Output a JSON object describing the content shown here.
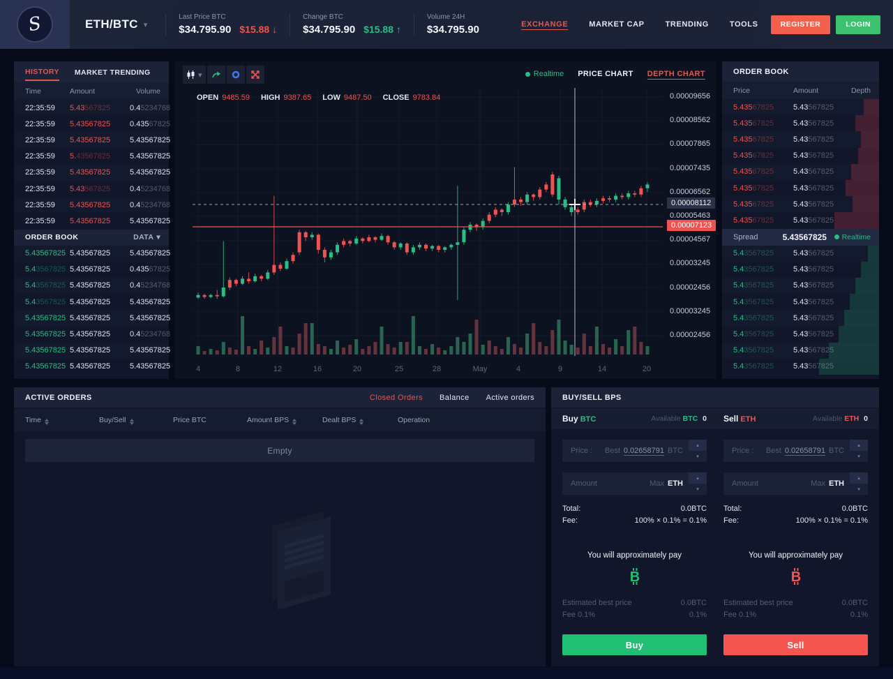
{
  "header": {
    "pair": "ETH/BTC",
    "stats": [
      {
        "label": "Last Price BTC",
        "value": "$34.795.90",
        "delta": "$15.88",
        "arrow": "↓",
        "dir": "down"
      },
      {
        "label": "Change BTC",
        "value": "$34.795.90",
        "delta": "$15.88",
        "arrow": "↑",
        "dir": "up"
      },
      {
        "label": "Volume 24H",
        "value": "$34.795.90",
        "delta": "",
        "arrow": "",
        "dir": "none"
      }
    ],
    "nav": [
      {
        "label": "EXCHANGE",
        "active": true
      },
      {
        "label": "MARKET CAP",
        "active": false
      },
      {
        "label": "TRENDING",
        "active": false
      },
      {
        "label": "TOOLS",
        "active": false
      }
    ],
    "register_label": "REGISTER",
    "login_label": "LOGIN",
    "colors": {
      "accent_red": "#ef5350",
      "accent_green": "#2abd84",
      "register_bg": "#f4604e",
      "login_bg": "#3cc16e"
    }
  },
  "left_panel": {
    "tabs": [
      {
        "label": "HISTORY",
        "active": true
      },
      {
        "label": "MARKET TRENDING",
        "active": false
      }
    ],
    "history_headers": [
      "Time",
      "Amount",
      "Volume"
    ],
    "history_rows": [
      {
        "time": "22:35:59",
        "amount": {
          "b": "5.43",
          "d": "567825"
        },
        "volume": {
          "b": "0.4",
          "d": "5234768"
        }
      },
      {
        "time": "22:35:59",
        "amount": {
          "b": "5.43567825",
          "d": ""
        },
        "volume": {
          "b": "0.435",
          "d": "67825"
        }
      },
      {
        "time": "22:35:59",
        "amount": {
          "b": "5.43567825",
          "d": ""
        },
        "volume": {
          "b": "5.43567825",
          "d": ""
        }
      },
      {
        "time": "22:35:59",
        "amount": {
          "b": "5.",
          "d": "43567825"
        },
        "volume": {
          "b": "5.43567825",
          "d": ""
        }
      },
      {
        "time": "22:35:59",
        "amount": {
          "b": "5.43567825",
          "d": ""
        },
        "volume": {
          "b": "5.43567825",
          "d": ""
        }
      },
      {
        "time": "22:35:59",
        "amount": {
          "b": "5.43",
          "d": "567825"
        },
        "volume": {
          "b": "0.4",
          "d": "5234768"
        }
      },
      {
        "time": "22:35:59",
        "amount": {
          "b": "5.43567825",
          "d": ""
        },
        "volume": {
          "b": "0.4",
          "d": "5234768"
        }
      },
      {
        "time": "22:35:59",
        "amount": {
          "b": "5.43567825",
          "d": ""
        },
        "volume": {
          "b": "5.43567825",
          "d": ""
        }
      }
    ],
    "orderbook_header": {
      "title": "ORDER BOOK",
      "dropdown": "DATA"
    },
    "orderbook_rows": [
      {
        "price": {
          "b": "5.43567825",
          "d": ""
        },
        "amount": {
          "b": "5.43567825",
          "d": ""
        },
        "volume": {
          "b": "5.43567825",
          "d": ""
        }
      },
      {
        "price": {
          "b": "5.4",
          "d": "3567825"
        },
        "amount": {
          "b": "5.43567825",
          "d": ""
        },
        "volume": {
          "b": "0.435",
          "d": "67825"
        }
      },
      {
        "price": {
          "b": "5.4",
          "d": "3567825"
        },
        "amount": {
          "b": "5.43567825",
          "d": ""
        },
        "volume": {
          "b": "0.4",
          "d": "5234768"
        }
      },
      {
        "price": {
          "b": "5.4",
          "d": "3567825"
        },
        "amount": {
          "b": "5.43567825",
          "d": ""
        },
        "volume": {
          "b": "5.43567825",
          "d": ""
        }
      },
      {
        "price": {
          "b": "5.43567825",
          "d": ""
        },
        "amount": {
          "b": "5.43567825",
          "d": ""
        },
        "volume": {
          "b": "5.43567825",
          "d": ""
        }
      },
      {
        "price": {
          "b": "5.43567825",
          "d": ""
        },
        "amount": {
          "b": "5.43567825",
          "d": ""
        },
        "volume": {
          "b": "0.4",
          "d": "5234768"
        }
      },
      {
        "price": {
          "b": "5.43567825",
          "d": ""
        },
        "amount": {
          "b": "5.43567825",
          "d": ""
        },
        "volume": {
          "b": "5.43567825",
          "d": ""
        }
      },
      {
        "price": {
          "b": "5.43567825",
          "d": ""
        },
        "amount": {
          "b": "5.43567825",
          "d": ""
        },
        "volume": {
          "b": "5.43567825",
          "d": ""
        }
      }
    ]
  },
  "chart_panel": {
    "realtime_label": "Realtime",
    "tabs": [
      {
        "label": "PRICE CHART",
        "active": false
      },
      {
        "label": "DEPTH CHART",
        "active": true
      }
    ],
    "toolbar_icons": [
      "candlestick-icon",
      "chevron-down-icon",
      "curved-arrow-icon",
      "gear-icon",
      "fullscreen-icon"
    ]
  },
  "chart_data": {
    "type": "candlestick",
    "ohlc": [
      {
        "label": "OPEN",
        "value": "9485.59"
      },
      {
        "label": "HIGH",
        "value": "9387.65"
      },
      {
        "label": "LOW",
        "value": "9487.50"
      },
      {
        "label": "CLOSE",
        "value": "9783.84"
      }
    ],
    "x_axis_labels": [
      "4",
      "8",
      "12",
      "16",
      "20",
      "25",
      "28",
      "May",
      "4",
      "9",
      "14",
      "20"
    ],
    "y_axis_ticks": [
      "0.00009656",
      "0.00008562",
      "0.00007865",
      "0.00007435",
      "0.00006562",
      "0.00005463",
      "0.00004567",
      "0.00003245",
      "0.00002456",
      "0.00003245",
      "0.00002456"
    ],
    "crosshair_price_label": "0.00008112",
    "current_price_label": "0.00007123",
    "legend_grid": true,
    "colors": {
      "up": "#2abd84",
      "down": "#ef5350",
      "vol_up": "#2c6e55",
      "vol_down": "#6e3742",
      "current_line": "#ef5350"
    },
    "candles": [
      [
        2,
        4,
        6,
        1,
        "g",
        12
      ],
      [
        4,
        2.5,
        5,
        1,
        "r",
        5
      ],
      [
        2.5,
        4,
        5,
        1.5,
        "g",
        8
      ],
      [
        4,
        3,
        8,
        1,
        "r",
        6
      ],
      [
        3,
        10,
        47,
        2,
        "g",
        18
      ],
      [
        10,
        16,
        18,
        8,
        "r",
        10
      ],
      [
        16,
        13,
        17,
        11,
        "r",
        7
      ],
      [
        13,
        17,
        19,
        12,
        "g",
        55
      ],
      [
        17,
        15,
        22,
        13,
        "r",
        12
      ],
      [
        15,
        19,
        21,
        14,
        "g",
        8
      ],
      [
        19,
        17,
        20,
        15,
        "r",
        20
      ],
      [
        17,
        22,
        24,
        16,
        "g",
        10
      ],
      [
        22,
        28,
        83,
        20,
        "r",
        25
      ],
      [
        28,
        25,
        30,
        23,
        "r",
        40
      ],
      [
        25,
        31,
        33,
        24,
        "g",
        12
      ],
      [
        31,
        36,
        38,
        29,
        "r",
        10
      ],
      [
        38,
        54,
        56,
        36,
        "r",
        30
      ],
      [
        54,
        50,
        55,
        47,
        "r",
        45
      ],
      [
        50,
        52,
        54,
        48,
        "g",
        45
      ],
      [
        52,
        40,
        53,
        37,
        "r",
        15
      ],
      [
        40,
        34,
        42,
        30,
        "r",
        12
      ],
      [
        34,
        38,
        40,
        32,
        "g",
        8
      ],
      [
        38,
        44,
        46,
        36,
        "g",
        20
      ],
      [
        44,
        47,
        49,
        42,
        "r",
        10
      ],
      [
        47,
        45,
        48,
        43,
        "r",
        14
      ],
      [
        45,
        49,
        51,
        44,
        "g",
        22
      ],
      [
        49,
        47,
        50,
        45,
        "r",
        8
      ],
      [
        47,
        50,
        52,
        46,
        "r",
        12
      ],
      [
        50,
        48,
        51,
        46,
        "r",
        18
      ],
      [
        48,
        51,
        53,
        47,
        "g",
        40
      ],
      [
        51,
        46,
        52,
        44,
        "r",
        15
      ],
      [
        46,
        42,
        47,
        40,
        "r",
        10
      ],
      [
        42,
        45,
        46,
        40,
        "g",
        18
      ],
      [
        45,
        38,
        46,
        36,
        "r",
        18
      ],
      [
        38,
        42,
        44,
        36,
        "g",
        55
      ],
      [
        42,
        44,
        46,
        40,
        "g",
        12
      ],
      [
        44,
        41,
        45,
        39,
        "r",
        8
      ],
      [
        41,
        43,
        44,
        39,
        "g",
        15
      ],
      [
        43,
        40,
        44,
        38,
        "r",
        10
      ],
      [
        40,
        42,
        43,
        38,
        "g",
        6
      ],
      [
        42,
        44,
        45,
        40,
        "g",
        12
      ],
      [
        44,
        46,
        91,
        0,
        "g",
        25
      ],
      [
        46,
        56,
        58,
        44,
        "g",
        18
      ],
      [
        56,
        60,
        62,
        54,
        "g",
        30
      ],
      [
        60,
        58,
        61,
        55,
        "r",
        50
      ],
      [
        58,
        63,
        65,
        56,
        "g",
        14
      ],
      [
        63,
        68,
        70,
        61,
        "r",
        20
      ],
      [
        68,
        72,
        74,
        66,
        "r",
        12
      ],
      [
        72,
        70,
        73,
        67,
        "r",
        8
      ],
      [
        70,
        76,
        78,
        68,
        "g",
        25
      ],
      [
        76,
        80,
        106,
        74,
        "r",
        15
      ],
      [
        80,
        78,
        82,
        75,
        "r",
        10
      ],
      [
        78,
        84,
        86,
        76,
        "g",
        30
      ],
      [
        84,
        82,
        85,
        79,
        "r",
        45
      ],
      [
        82,
        88,
        90,
        80,
        "r",
        18
      ],
      [
        88,
        92,
        94,
        86,
        "r",
        12
      ],
      [
        84,
        100,
        102,
        82,
        "r",
        35
      ],
      [
        97,
        80,
        99,
        76,
        "g",
        50
      ],
      [
        80,
        74,
        82,
        72,
        "g",
        20
      ],
      [
        74,
        70,
        76,
        67,
        "g",
        14
      ],
      [
        70,
        72,
        74,
        68,
        "r",
        10
      ],
      [
        72,
        78,
        80,
        70,
        "r",
        30
      ],
      [
        78,
        76,
        80,
        74,
        "r",
        12
      ],
      [
        76,
        79,
        81,
        74,
        "g",
        40
      ],
      [
        79,
        81,
        83,
        77,
        "r",
        15
      ],
      [
        81,
        80,
        83,
        78,
        "r",
        10
      ],
      [
        80,
        83,
        85,
        78,
        "g",
        22
      ],
      [
        83,
        82,
        85,
        80,
        "r",
        12
      ],
      [
        82,
        85,
        87,
        80,
        "g",
        35
      ],
      [
        85,
        84,
        87,
        82,
        "r",
        40
      ],
      [
        84,
        89,
        91,
        82,
        "r",
        18
      ],
      [
        89,
        92,
        94,
        86,
        "g",
        12
      ]
    ]
  },
  "right_panel": {
    "title": "ORDER BOOK",
    "headers": [
      "Price",
      "Amount",
      "Depth"
    ],
    "asks": [
      {
        "price": {
          "b": "5.435",
          "d": "67825"
        },
        "amount": {
          "b": "5.43",
          "d": "567825"
        },
        "depth": 22
      },
      {
        "price": {
          "b": "5.435",
          "d": "67825"
        },
        "amount": {
          "b": "5.43",
          "d": "567825"
        },
        "depth": 34
      },
      {
        "price": {
          "b": "5.435",
          "d": "67825"
        },
        "amount": {
          "b": "5.43",
          "d": "567825"
        },
        "depth": 26
      },
      {
        "price": {
          "b": "5.435",
          "d": "67825"
        },
        "amount": {
          "b": "5.43",
          "d": "567825"
        },
        "depth": 30
      },
      {
        "price": {
          "b": "5.435",
          "d": "67825"
        },
        "amount": {
          "b": "5.43",
          "d": "567825"
        },
        "depth": 40
      },
      {
        "price": {
          "b": "5.435",
          "d": "67825"
        },
        "amount": {
          "b": "5.43",
          "d": "567825"
        },
        "depth": 48
      },
      {
        "price": {
          "b": "5.435",
          "d": "67825"
        },
        "amount": {
          "b": "5.43",
          "d": "567825"
        },
        "depth": 38
      },
      {
        "price": {
          "b": "5.435",
          "d": "67825"
        },
        "amount": {
          "b": "5.43",
          "d": "567825"
        },
        "depth": 64
      }
    ],
    "spread": {
      "label": "Spread",
      "value": "5.43567825",
      "realtime": "Realtime"
    },
    "bids": [
      {
        "price": {
          "b": "5.4",
          "d": "3567825"
        },
        "amount": {
          "b": "5.43",
          "d": "567825"
        },
        "depth": 16
      },
      {
        "price": {
          "b": "5.4",
          "d": "3567825"
        },
        "amount": {
          "b": "5.43",
          "d": "567825"
        },
        "depth": 26
      },
      {
        "price": {
          "b": "5.4",
          "d": "3567825"
        },
        "amount": {
          "b": "5.43",
          "d": "567825"
        },
        "depth": 34
      },
      {
        "price": {
          "b": "5.4",
          "d": "3567825"
        },
        "amount": {
          "b": "5.43",
          "d": "567825"
        },
        "depth": 42
      },
      {
        "price": {
          "b": "5.4",
          "d": "3567825"
        },
        "amount": {
          "b": "5.43",
          "d": "567825"
        },
        "depth": 50
      },
      {
        "price": {
          "b": "5.4",
          "d": "3567825"
        },
        "amount": {
          "b": "5.43",
          "d": "567825"
        },
        "depth": 58
      },
      {
        "price": {
          "b": "5.4",
          "d": "3567825"
        },
        "amount": {
          "b": "5.43",
          "d": "567825"
        },
        "depth": 72
      },
      {
        "price": {
          "b": "5.4",
          "d": "3567825"
        },
        "amount": {
          "b": "5.43",
          "d": "567825"
        },
        "depth": 86
      }
    ]
  },
  "orders_panel": {
    "title": "ACTIVE ORDERS",
    "tabs": [
      {
        "label": "Closed Orders",
        "active": true
      },
      {
        "label": "Balance",
        "active": false
      },
      {
        "label": "Active orders",
        "active": false
      }
    ],
    "headers": [
      {
        "label": "Time",
        "sortable": true
      },
      {
        "label": "Buy/Sell",
        "sortable": true
      },
      {
        "label": "Price BTC",
        "sortable": false
      },
      {
        "label": "Amount BPS",
        "sortable": true
      },
      {
        "label": "Dealt BPS",
        "sortable": true
      },
      {
        "label": "Operation",
        "sortable": false
      }
    ],
    "empty_label": "Empty"
  },
  "trade_panel": {
    "title": "BUY/SELL BPS",
    "buy": {
      "side_label": "Buy",
      "coin": "BTC",
      "available_label": "Available",
      "available_coin": "BTC",
      "available_value": "0",
      "price_label": "Price :",
      "price_best_label": "Best",
      "price_best_value": "0.02658791",
      "price_unit": "BTC",
      "amount_label": "Amount",
      "amount_max_label": "Max",
      "amount_unit": "ETH",
      "total_label": "Total:",
      "total_value": "0.0BTC",
      "fee_label": "Fee:",
      "fee_value": "100% × 0.1% = 0.1%",
      "approx_label": "You will approximately pay",
      "est_label": "Estimated best price",
      "est_value": "0.0BTC",
      "fee2_label": "Fee 0.1%",
      "fee2_value": "0.1%",
      "button": "Buy",
      "accent": "#21bf73"
    },
    "sell": {
      "side_label": "Sell",
      "coin": "ETH",
      "available_label": "Available",
      "available_coin": "ETH",
      "available_value": "0",
      "price_label": "Price :",
      "price_best_label": "Best",
      "price_best_value": "0.02658791",
      "price_unit": "BTC",
      "amount_label": "Amount",
      "amount_max_label": "Max",
      "amount_unit": "ETH",
      "total_label": "Total:",
      "total_value": "0.0BTC",
      "fee_label": "Fee:",
      "fee_value": "100% × 0.1% = 0.1%",
      "approx_label": "You will approximately pay",
      "est_label": "Estimated best price",
      "est_value": "0.0BTC",
      "fee2_label": "Fee 0.1%",
      "fee2_value": "0.1%",
      "button": "Sell",
      "accent": "#f5554f"
    }
  }
}
